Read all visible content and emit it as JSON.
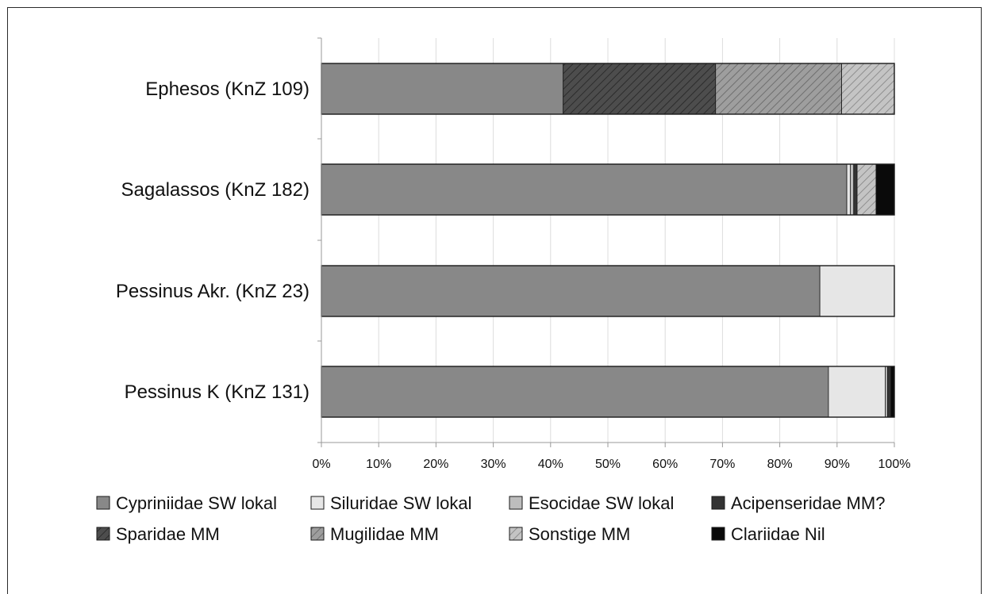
{
  "chart_data": {
    "type": "bar",
    "orientation": "horizontal",
    "stacked": true,
    "percent": true,
    "title": "",
    "xlabel": "",
    "ylabel": "",
    "xlim": [
      0,
      100
    ],
    "x_ticks": [
      "0%",
      "10%",
      "20%",
      "30%",
      "40%",
      "50%",
      "60%",
      "70%",
      "80%",
      "90%",
      "100%"
    ],
    "grid": true,
    "legend_position": "bottom",
    "categories": [
      "Ephesos (KnZ 109)",
      "Sagalassos (KnZ 182)",
      "Pessinus Akr. (KnZ 23)",
      "Pessinus K (KnZ 131)"
    ],
    "series": [
      {
        "name": "Cypriniidae SW lokal",
        "color": "#888888",
        "pattern": "solid",
        "values": [
          42.2,
          91.7,
          87.0,
          88.5
        ]
      },
      {
        "name": "Siluridae SW lokal",
        "color": "#e6e6e6",
        "pattern": "solid",
        "values": [
          0,
          0.6,
          13.0,
          9.9
        ]
      },
      {
        "name": "Esocidae SW lokal",
        "color": "#bdbdbd",
        "pattern": "solid",
        "values": [
          0,
          0.6,
          0,
          0.4
        ]
      },
      {
        "name": "Acipenseridae MM?",
        "color": "#333333",
        "pattern": "solid",
        "values": [
          0,
          0.6,
          0,
          0.6
        ]
      },
      {
        "name": "Sparidae MM",
        "color": "#4d4d4d",
        "pattern": "hatch",
        "values": [
          26.6,
          0,
          0,
          0
        ]
      },
      {
        "name": "Mugilidae MM",
        "color": "#9e9e9e",
        "pattern": "hatch",
        "values": [
          22.0,
          0,
          0,
          0
        ]
      },
      {
        "name": "Sonstige MM",
        "color": "#c4c4c4",
        "pattern": "hatch",
        "values": [
          9.2,
          3.3,
          0,
          0
        ]
      },
      {
        "name": "Clariidae Nil",
        "color": "#0a0a0a",
        "pattern": "solid",
        "values": [
          0,
          3.2,
          0,
          0.6
        ]
      }
    ]
  }
}
